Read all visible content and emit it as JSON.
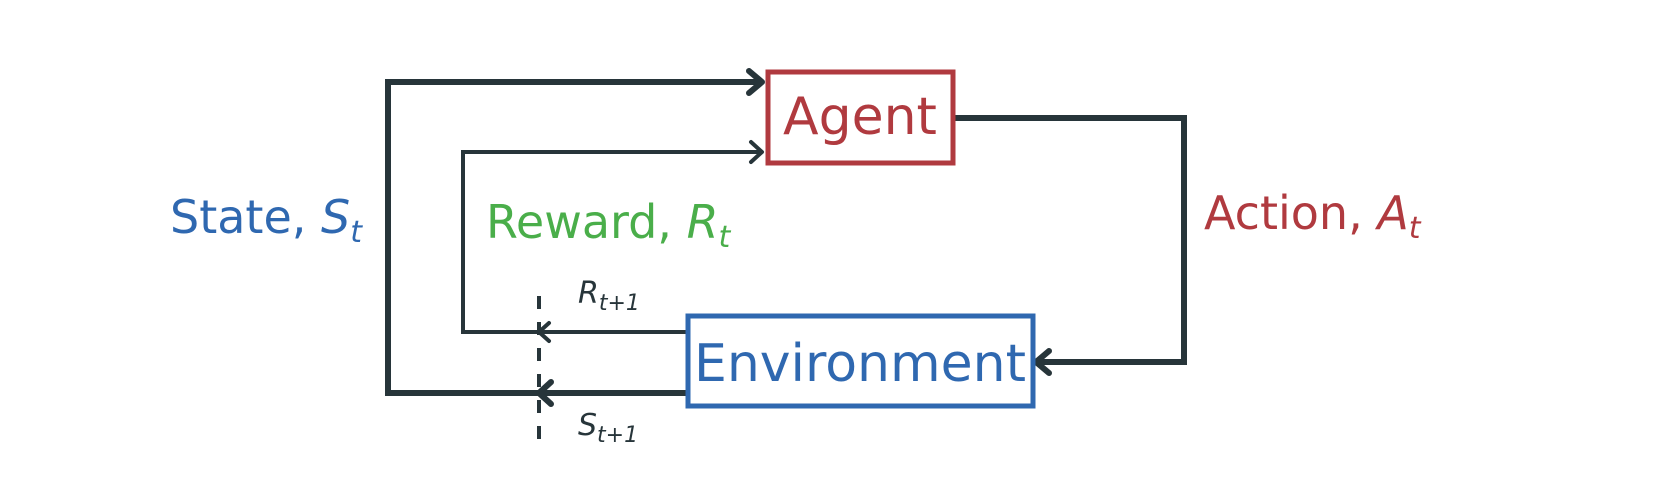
{
  "nodes": {
    "agent": {
      "label": "Agent"
    },
    "environment": {
      "label": "Environment"
    }
  },
  "edges": {
    "action": {
      "text": "Action, ",
      "symbol": "A",
      "subscript": "t"
    },
    "state": {
      "text": "State, ",
      "symbol": "S",
      "subscript": "t"
    },
    "reward": {
      "text": "Reward, ",
      "symbol": "R",
      "subscript": "t"
    },
    "next_reward": {
      "symbol": "R",
      "subscript": "t+1"
    },
    "next_state": {
      "symbol": "S",
      "subscript": "t+1"
    }
  },
  "colors": {
    "agent": "#b03a3f",
    "environment": "#2f68b0",
    "reward": "#4aae4a",
    "line": "#27353a"
  }
}
